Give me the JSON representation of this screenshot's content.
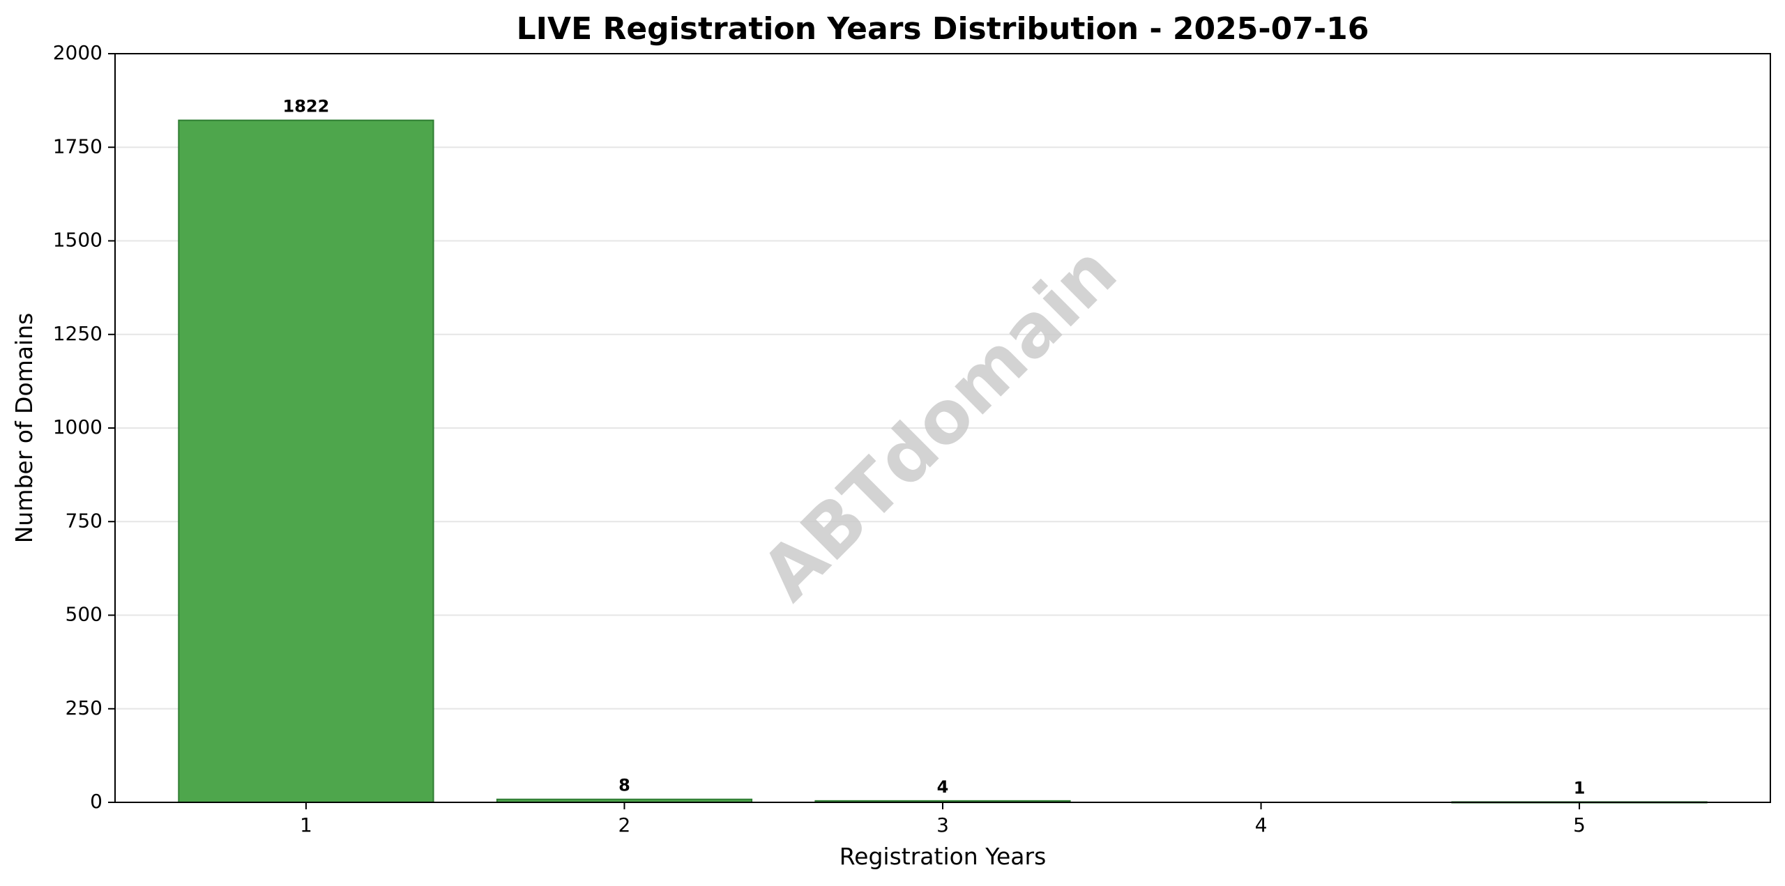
{
  "chart_data": {
    "type": "bar",
    "title": "LIVE Registration Years Distribution - 2025-07-16",
    "xlabel": "Registration Years",
    "ylabel": "Number of Domains",
    "categories": [
      "1",
      "2",
      "3",
      "4",
      "5"
    ],
    "values": [
      1822,
      8,
      4,
      0,
      1
    ],
    "data_labels": [
      "1822",
      "8",
      "4",
      "",
      "1"
    ],
    "ylim": [
      0,
      2000
    ],
    "yticks": [
      0,
      250,
      500,
      750,
      1000,
      1250,
      1500,
      1750,
      2000
    ],
    "grid": "horizontal",
    "bar_color": "#4ea64c",
    "bar_edge_color": "#2e7d32",
    "grid_color": "#e6e6e6"
  },
  "watermark": "ABTdomain"
}
